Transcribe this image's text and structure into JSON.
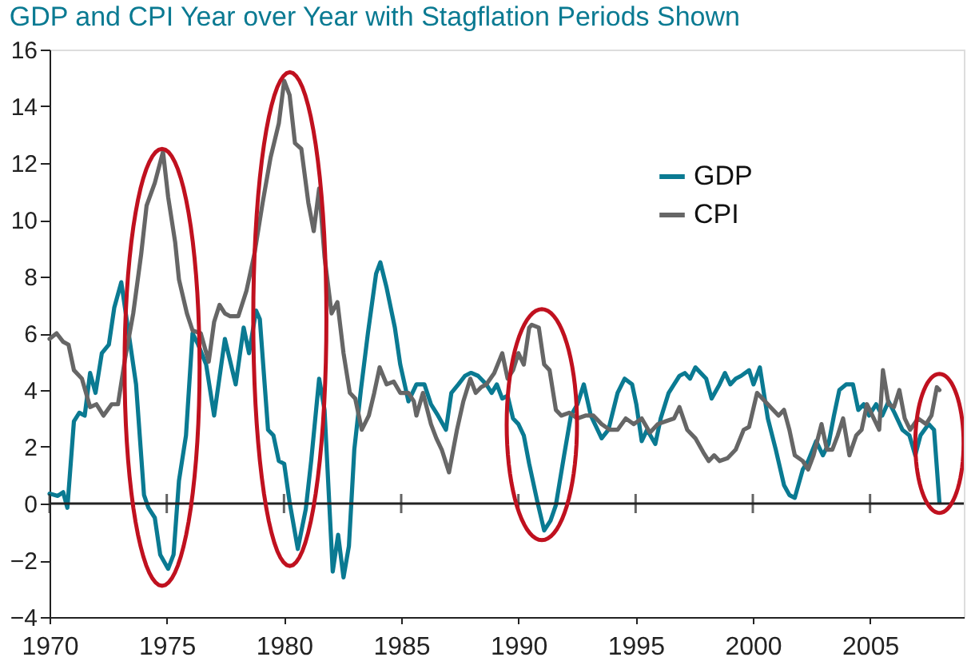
{
  "chart_data": {
    "type": "line",
    "title": "GDP and CPI Year over Year with Stagflation Periods Shown",
    "xlim": [
      1970,
      2009
    ],
    "xticks": [
      1970,
      1975,
      1980,
      1985,
      1990,
      1995,
      2000,
      2005
    ],
    "ylim": [
      -4,
      16
    ],
    "yticks": [
      -4,
      -2,
      0,
      2,
      4,
      6,
      8,
      10,
      12,
      14,
      16
    ],
    "grid": false,
    "legend": "top right",
    "marker": "none",
    "line_style": "solid",
    "ref_lines": [
      {
        "axis": "y",
        "value": 0
      }
    ],
    "series": [
      {
        "name": "GDP",
        "color": "#0a7a92",
        "x": [
          1970.0,
          1970.35,
          1970.58,
          1970.76,
          1971.04,
          1971.27,
          1971.5,
          1971.73,
          1971.96,
          1972.23,
          1972.53,
          1972.76,
          1973.06,
          1973.34,
          1973.69,
          1974.03,
          1974.22,
          1974.49,
          1974.72,
          1975.06,
          1975.29,
          1975.52,
          1975.82,
          1976.1,
          1976.34,
          1976.68,
          1977.02,
          1977.48,
          1977.94,
          1978.28,
          1978.51,
          1978.81,
          1978.97,
          1979.32,
          1979.55,
          1979.78,
          1980.01,
          1980.24,
          1980.59,
          1980.93,
          1981.16,
          1981.5,
          1981.73,
          1982.08,
          1982.31,
          1982.54,
          1982.77,
          1983.0,
          1983.28,
          1983.58,
          1983.93,
          1984.11,
          1984.38,
          1984.73,
          1984.96,
          1985.31,
          1985.65,
          1985.99,
          1986.27,
          1986.57,
          1986.91,
          1987.14,
          1987.44,
          1987.72,
          1987.95,
          1988.0,
          1988.28,
          1988.63,
          1988.86,
          1989.08,
          1989.31,
          1989.54,
          1989.77,
          1990.0,
          1990.23,
          1990.46,
          1990.8,
          1991.1,
          1991.37,
          1991.6,
          1991.95,
          1992.24,
          1992.52,
          1992.79,
          1993.09,
          1993.55,
          1993.84,
          1994.23,
          1994.53,
          1994.85,
          1995.03,
          1995.26,
          1995.49,
          1995.84,
          1996.07,
          1996.41,
          1996.64,
          1996.87,
          1997.1,
          1997.32,
          1997.55,
          1998.01,
          1998.24,
          1998.58,
          1998.81,
          1999.04,
          1999.27,
          1999.5,
          1999.84,
          2000.03,
          2000.3,
          2000.64,
          2000.98,
          2001.33,
          2001.56,
          2001.79,
          2002.13,
          2002.36,
          2002.7,
          2002.99,
          2003.23,
          2003.46,
          2003.69,
          2003.98,
          2004.27,
          2004.5,
          2004.73,
          2004.96,
          2005.26,
          2005.52,
          2005.79,
          2006.04,
          2006.38,
          2006.68,
          2006.93,
          2007.15,
          2007.5,
          2007.73,
          2007.96
        ],
        "values": [
          0.35,
          0.27,
          0.4,
          -0.15,
          2.9,
          3.2,
          3.1,
          4.6,
          3.9,
          5.3,
          5.6,
          6.9,
          7.8,
          6.2,
          4.2,
          0.3,
          -0.15,
          -0.5,
          -1.8,
          -2.3,
          -1.8,
          0.8,
          2.4,
          6.0,
          5.6,
          4.9,
          3.1,
          5.8,
          4.2,
          6.2,
          5.3,
          6.8,
          6.5,
          2.6,
          2.4,
          1.5,
          1.4,
          0.05,
          -1.6,
          -0.2,
          1.5,
          4.4,
          3.3,
          -2.4,
          -1.1,
          -2.6,
          -1.5,
          1.9,
          4.0,
          6.0,
          8.1,
          8.5,
          7.6,
          6.2,
          4.9,
          3.6,
          4.2,
          4.2,
          3.5,
          3.1,
          2.6,
          3.9,
          4.2,
          4.5,
          4.6,
          4.6,
          4.5,
          4.2,
          3.9,
          4.2,
          3.7,
          3.8,
          3.0,
          2.8,
          2.4,
          1.4,
          0.1,
          -0.95,
          -0.6,
          -0.05,
          1.7,
          3.1,
          3.5,
          4.2,
          3.1,
          2.3,
          2.6,
          3.9,
          4.4,
          4.2,
          3.5,
          2.2,
          2.6,
          2.1,
          3.0,
          3.9,
          4.2,
          4.5,
          4.6,
          4.4,
          4.8,
          4.4,
          3.7,
          4.2,
          4.6,
          4.2,
          4.4,
          4.5,
          4.7,
          4.2,
          4.8,
          3.0,
          1.9,
          0.65,
          0.3,
          0.2,
          1.2,
          1.5,
          2.2,
          1.7,
          2.1,
          3.1,
          4.0,
          4.2,
          4.2,
          3.3,
          3.5,
          3.1,
          3.5,
          3.1,
          3.6,
          3.2,
          2.6,
          2.4,
          1.7,
          2.4,
          2.8,
          2.6,
          0.04
        ]
      },
      {
        "name": "CPI",
        "color": "#666666",
        "x": [
          1970.0,
          1970.3,
          1970.58,
          1970.81,
          1971.04,
          1971.38,
          1971.73,
          1972.0,
          1972.3,
          1972.65,
          1972.92,
          1973.22,
          1973.57,
          1973.91,
          1974.14,
          1974.49,
          1974.84,
          1975.06,
          1975.36,
          1975.52,
          1975.86,
          1976.1,
          1976.45,
          1976.79,
          1977.02,
          1977.25,
          1977.48,
          1977.71,
          1978.05,
          1978.4,
          1978.74,
          1979.09,
          1979.43,
          1979.78,
          1980.01,
          1980.24,
          1980.47,
          1980.74,
          1981.04,
          1981.27,
          1981.5,
          1981.73,
          1982.03,
          1982.28,
          1982.54,
          1982.81,
          1983.04,
          1983.32,
          1983.62,
          1983.85,
          1984.08,
          1984.38,
          1984.68,
          1984.96,
          1985.31,
          1985.54,
          1985.65,
          1985.93,
          1986.27,
          1986.5,
          1986.73,
          1987.04,
          1987.38,
          1987.65,
          1987.95,
          1988.18,
          1988.41,
          1988.63,
          1988.97,
          1989.31,
          1989.54,
          1989.77,
          1990.0,
          1990.23,
          1990.46,
          1990.57,
          1990.87,
          1991.1,
          1991.33,
          1991.6,
          1991.83,
          1992.17,
          1992.52,
          1992.86,
          1993.2,
          1993.55,
          1993.89,
          1994.23,
          1994.58,
          1994.92,
          1995.26,
          1995.61,
          1995.95,
          1996.29,
          1996.64,
          1996.87,
          1997.2,
          1997.55,
          1997.89,
          1998.12,
          1998.35,
          1998.58,
          1998.92,
          1999.27,
          1999.61,
          1999.84,
          2000.18,
          2000.41,
          2000.75,
          2001.1,
          2001.33,
          2001.56,
          2001.79,
          2002.13,
          2002.36,
          2002.59,
          2002.93,
          2003.16,
          2003.39,
          2003.62,
          2003.85,
          2004.12,
          2004.41,
          2004.64,
          2004.87,
          2005.1,
          2005.39,
          2005.55,
          2005.79,
          2006.02,
          2006.25,
          2006.48,
          2006.71,
          2007.05,
          2007.39,
          2007.62,
          2007.85,
          2007.96
        ],
        "values": [
          5.8,
          6.0,
          5.7,
          5.6,
          4.7,
          4.4,
          3.4,
          3.5,
          3.1,
          3.5,
          3.5,
          5.1,
          6.7,
          8.8,
          10.5,
          11.3,
          12.4,
          10.8,
          9.2,
          7.9,
          6.7,
          6.1,
          6.0,
          5.0,
          6.4,
          7.0,
          6.7,
          6.6,
          6.6,
          7.5,
          8.8,
          10.6,
          12.2,
          13.4,
          14.9,
          14.4,
          12.7,
          12.5,
          10.6,
          9.6,
          11.1,
          8.7,
          6.7,
          7.1,
          5.3,
          3.9,
          3.7,
          2.6,
          3.1,
          3.9,
          4.8,
          4.2,
          4.3,
          3.9,
          3.9,
          3.6,
          3.1,
          3.9,
          2.8,
          2.3,
          1.9,
          1.1,
          2.6,
          3.6,
          4.4,
          3.9,
          4.1,
          4.2,
          4.6,
          5.3,
          4.4,
          4.7,
          5.3,
          4.9,
          6.2,
          6.3,
          6.2,
          4.9,
          4.7,
          3.3,
          3.1,
          3.2,
          3.0,
          3.1,
          3.1,
          2.8,
          2.6,
          2.6,
          3.0,
          2.8,
          3.0,
          2.5,
          2.8,
          2.9,
          3.0,
          3.4,
          2.6,
          2.3,
          1.8,
          1.5,
          1.7,
          1.5,
          1.6,
          1.9,
          2.6,
          2.7,
          3.9,
          3.7,
          3.4,
          3.1,
          3.3,
          2.6,
          1.7,
          1.5,
          1.2,
          1.7,
          2.8,
          1.9,
          1.9,
          2.4,
          3.0,
          1.7,
          2.4,
          2.6,
          3.5,
          3.1,
          2.6,
          4.7,
          3.5,
          3.4,
          4.0,
          3.0,
          2.6,
          3.0,
          2.8,
          3.1,
          4.1,
          4.0
        ]
      }
    ]
  }
}
